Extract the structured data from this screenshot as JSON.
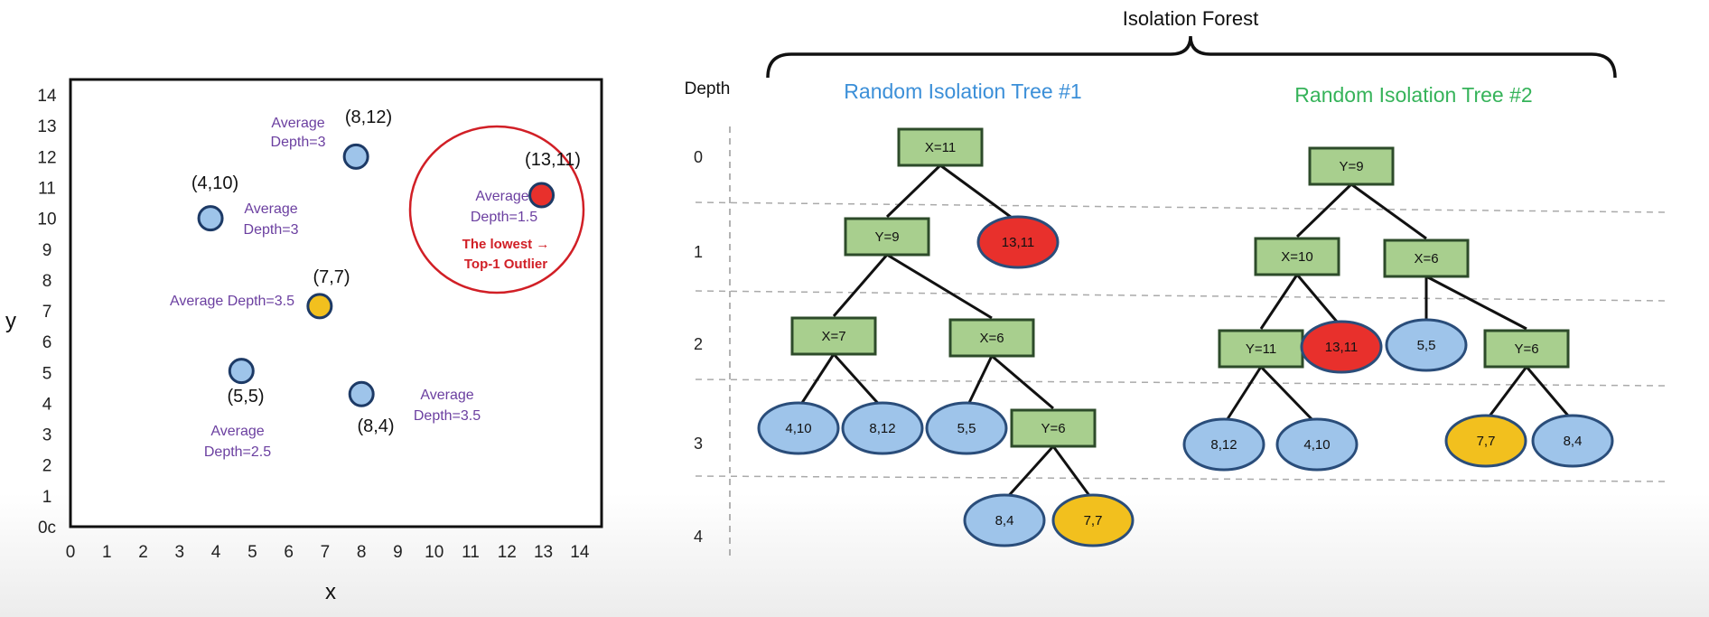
{
  "scatter": {
    "xlabel": "x",
    "ylabel": "y",
    "x_ticks": [
      "0",
      "1",
      "2",
      "3",
      "4",
      "5",
      "6",
      "7",
      "8",
      "9",
      "10",
      "11",
      "12",
      "13",
      "14"
    ],
    "y_ticks": [
      "0c",
      "1",
      "2",
      "3",
      "4",
      "5",
      "6",
      "7",
      "8",
      "9",
      "10",
      "11",
      "12",
      "13",
      "14"
    ],
    "points": [
      {
        "label": "(8,12)",
        "x": 7.85,
        "y": 12,
        "color": "#9ec4ea",
        "ann": [
          "Average",
          "Depth=3"
        ]
      },
      {
        "label": "(4,10)",
        "x": 3.85,
        "y": 10,
        "color": "#9ec4ea",
        "ann": [
          "Average",
          "Depth=3"
        ]
      },
      {
        "label": "(7,7)",
        "x": 6.85,
        "y": 7.15,
        "color": "#f2c01e",
        "ann": [
          "Average Depth=3.5"
        ]
      },
      {
        "label": "(5,5)",
        "x": 4.7,
        "y": 5.05,
        "color": "#9ec4ea",
        "ann": [
          "Average",
          "Depth=2.5"
        ]
      },
      {
        "label": "(8,4)",
        "x": 8.0,
        "y": 4.3,
        "color": "#9ec4ea",
        "ann": [
          "Average",
          "Depth=3.5"
        ]
      },
      {
        "label": "(13,11)",
        "x": 12.95,
        "y": 10.75,
        "color": "#e8302c",
        "ann": [
          "Average",
          "Depth=1.5"
        ]
      }
    ],
    "outlier_note": [
      "The lowest →",
      "Top-1 Outlier"
    ]
  },
  "forest": {
    "title": "Isolation Forest",
    "depth_header": "Depth",
    "depths": [
      "0",
      "1",
      "2",
      "3",
      "4"
    ],
    "tree1": {
      "title": "Random Isolation Tree #1",
      "nodes": [
        {
          "id": "a",
          "text": "X=11",
          "kind": "split",
          "depth": 0
        },
        {
          "id": "b",
          "text": "Y=9",
          "kind": "split",
          "depth": 1,
          "parent": "a"
        },
        {
          "id": "c",
          "text": "13,11",
          "kind": "leaf",
          "color": "red",
          "depth": 1,
          "parent": "a"
        },
        {
          "id": "d",
          "text": "X=7",
          "kind": "split",
          "depth": 2,
          "parent": "b"
        },
        {
          "id": "e",
          "text": "X=6",
          "kind": "split",
          "depth": 2,
          "parent": "b"
        },
        {
          "id": "f",
          "text": "4,10",
          "kind": "leaf",
          "color": "blue",
          "depth": 3,
          "parent": "d"
        },
        {
          "id": "g",
          "text": "8,12",
          "kind": "leaf",
          "color": "blue",
          "depth": 3,
          "parent": "d"
        },
        {
          "id": "h",
          "text": "5,5",
          "kind": "leaf",
          "color": "blue",
          "depth": 3,
          "parent": "e"
        },
        {
          "id": "i",
          "text": "Y=6",
          "kind": "split",
          "depth": 3,
          "parent": "e"
        },
        {
          "id": "j",
          "text": "8,4",
          "kind": "leaf",
          "color": "blue",
          "depth": 4,
          "parent": "i"
        },
        {
          "id": "k",
          "text": "7,7",
          "kind": "leaf",
          "color": "yellow",
          "depth": 4,
          "parent": "i"
        }
      ]
    },
    "tree2": {
      "title": "Random Isolation Tree #2",
      "nodes": [
        {
          "id": "a",
          "text": "Y=9",
          "kind": "split",
          "depth": 0
        },
        {
          "id": "b",
          "text": "X=10",
          "kind": "split",
          "depth": 1,
          "parent": "a"
        },
        {
          "id": "c",
          "text": "X=6",
          "kind": "split",
          "depth": 1,
          "parent": "a"
        },
        {
          "id": "d",
          "text": "Y=11",
          "kind": "split",
          "depth": 2,
          "parent": "b"
        },
        {
          "id": "e",
          "text": "13,11",
          "kind": "leaf",
          "color": "red",
          "depth": 2,
          "parent": "b"
        },
        {
          "id": "f",
          "text": "5,5",
          "kind": "leaf",
          "color": "blue",
          "depth": 2,
          "parent": "c"
        },
        {
          "id": "g",
          "text": "Y=6",
          "kind": "split",
          "depth": 2,
          "parent": "c"
        },
        {
          "id": "h",
          "text": "8,12",
          "kind": "leaf",
          "color": "blue",
          "depth": 3,
          "parent": "d"
        },
        {
          "id": "i",
          "text": "4,10",
          "kind": "leaf",
          "color": "blue",
          "depth": 3,
          "parent": "d"
        },
        {
          "id": "j",
          "text": "7,7",
          "kind": "leaf",
          "color": "yellow",
          "depth": 3,
          "parent": "g"
        },
        {
          "id": "k",
          "text": "8,4",
          "kind": "leaf",
          "color": "blue",
          "depth": 3,
          "parent": "g"
        }
      ]
    },
    "colors": {
      "split_fill": "#a8cf8e",
      "split_stroke": "#2d4b2a",
      "leaf_blue": "#9ec4ea",
      "leaf_red": "#e8302c",
      "leaf_yellow": "#f2c01e",
      "leaf_stroke": "#2a4d7a"
    }
  }
}
